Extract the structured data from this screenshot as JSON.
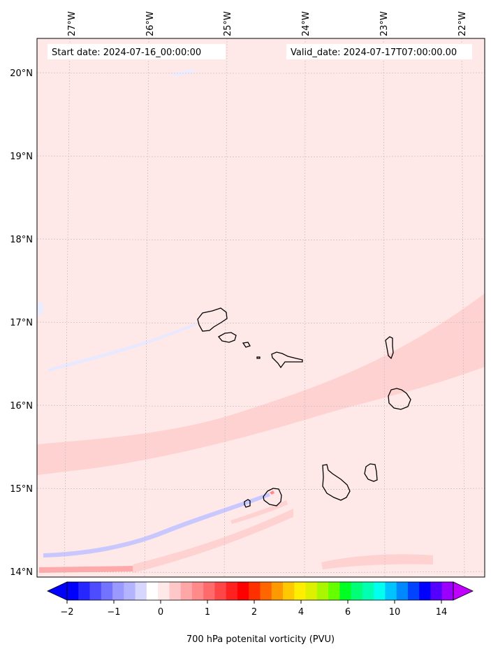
{
  "map": {
    "start_label": "Start date: 2024-07-16_00:00:00",
    "valid_label": "Valid_date: 2024-07-17T07:00:00.00",
    "lon_labels": [
      "27°W",
      "26°W",
      "25°W",
      "24°W",
      "23°W",
      "22°W"
    ],
    "lat_labels": [
      "20°N",
      "19°N",
      "18°N",
      "17°N",
      "16°N",
      "15°N",
      "14°N"
    ],
    "background_color": "#ffe8e8",
    "band_color": "#ffd2d2",
    "land_outline_color": "#000000"
  },
  "colorbar": {
    "title": "700 hPa potenital vorticity (PVU)",
    "tick_labels": [
      "−2",
      "−1",
      "0",
      "1",
      "2",
      "4",
      "6",
      "10",
      "14"
    ],
    "colors": [
      "#0000ff",
      "#2626ff",
      "#4d4dff",
      "#7373ff",
      "#9999ff",
      "#b3b3ff",
      "#d6d6ff",
      "#ffffff",
      "#ffe8e8",
      "#ffc8c8",
      "#ffa6a6",
      "#ff8a8a",
      "#ff6a6a",
      "#ff4646",
      "#ff2020",
      "#ff0000",
      "#ff3000",
      "#ff6600",
      "#ff9900",
      "#ffc800",
      "#ffee00",
      "#dcf000",
      "#aaf500",
      "#66ff00",
      "#00ff22",
      "#00ff77",
      "#00ffb0",
      "#00ffee",
      "#00c4ff",
      "#0088ff",
      "#0044ff",
      "#0000ff",
      "#5500ff",
      "#9b00ff"
    ],
    "under_color": "#0000ff",
    "over_color": "#c000ff"
  }
}
